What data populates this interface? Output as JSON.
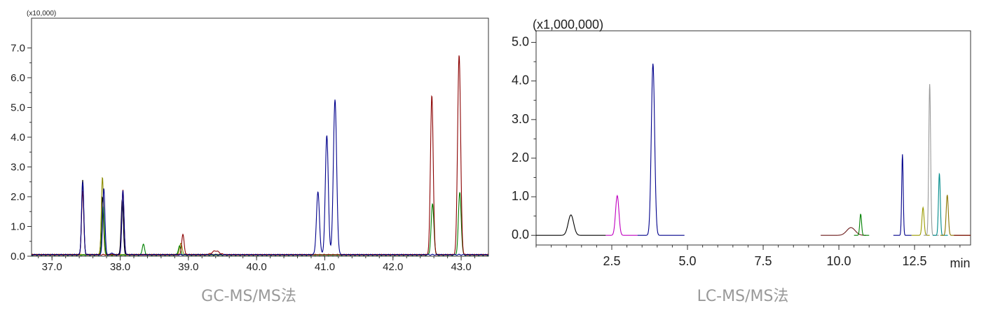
{
  "chart_data": [
    {
      "type": "line",
      "multiplier_label": "(x10,000)",
      "caption": "GC-MS/MS法",
      "xlim": [
        36.7,
        43.4
      ],
      "ylim": [
        0,
        8.0
      ],
      "xticks": [
        37.0,
        38.0,
        39.0,
        40.0,
        41.0,
        42.0,
        43.0
      ],
      "xtick_labels": [
        "37.0",
        "38.0",
        "39.0",
        "40.0",
        "41.0",
        "42.0",
        "43.0"
      ],
      "yticks": [
        0,
        1,
        2,
        3,
        4,
        5,
        6,
        7
      ],
      "ytick_labels": [
        "0.0",
        "1.0",
        "2.0",
        "3.0",
        "4.0",
        "5.0",
        "6.0",
        "7.0"
      ],
      "series": [
        {
          "color": "#000000",
          "baseline": 0.05,
          "range": [
            36.7,
            39.5
          ],
          "peaks": [
            [
              37.45,
              2.55,
              0.016
            ],
            [
              37.74,
              2.0,
              0.016
            ],
            [
              38.03,
              1.9,
              0.016
            ]
          ]
        },
        {
          "color": "#8b8b00",
          "baseline": 0.05,
          "range": [
            36.7,
            39.5
          ],
          "peaks": [
            [
              37.74,
              2.65,
              0.016
            ],
            [
              38.89,
              0.45,
              0.018
            ]
          ]
        },
        {
          "color": "#008000",
          "baseline": 0.04,
          "range": [
            36.7,
            43.4
          ],
          "peaks": [
            [
              37.75,
              1.7,
              0.016
            ],
            [
              38.34,
              0.42,
              0.016
            ],
            [
              38.87,
              0.35,
              0.018
            ],
            [
              42.58,
              1.75,
              0.02
            ],
            [
              42.98,
              2.15,
              0.02
            ]
          ]
        },
        {
          "color": "#8b0000",
          "baseline": 0.05,
          "range": [
            36.7,
            43.4
          ],
          "peaks": [
            [
              37.45,
              2.2,
              0.016
            ],
            [
              38.04,
              2.25,
              0.016
            ],
            [
              38.92,
              0.72,
              0.018
            ],
            [
              39.4,
              0.18,
              0.05
            ],
            [
              42.57,
              5.42,
              0.02
            ],
            [
              42.97,
              6.78,
              0.022
            ]
          ]
        },
        {
          "color": "#00008b",
          "baseline": 0.05,
          "range": [
            36.7,
            43.4
          ],
          "peaks": [
            [
              37.45,
              2.5,
              0.016
            ],
            [
              37.76,
              2.3,
              0.016
            ],
            [
              37.88,
              0.12,
              0.014
            ],
            [
              38.04,
              2.2,
              0.016
            ],
            [
              40.9,
              2.15,
              0.022
            ],
            [
              41.03,
              4.05,
              0.022
            ],
            [
              41.15,
              5.25,
              0.024
            ]
          ]
        }
      ]
    },
    {
      "type": "line",
      "multiplier_label": "(x1,000,000)",
      "caption": "LC-MS/MS法",
      "xlabel": "min",
      "xlim": [
        0,
        14.35
      ],
      "ylim": [
        -0.25,
        5.3
      ],
      "xticks": [
        2.5,
        5.0,
        7.5,
        10.0,
        12.5
      ],
      "xtick_labels": [
        "2.5",
        "5.0",
        "7.5",
        "10.0",
        "12.5"
      ],
      "yticks": [
        0,
        1,
        2,
        3,
        4,
        5
      ],
      "ytick_labels": [
        "0.0",
        "1.0",
        "2.0",
        "3.0",
        "4.0",
        "5.0"
      ],
      "series": [
        {
          "color": "#000000",
          "baseline": 0.0,
          "range": [
            0,
            2.3
          ],
          "peaks": [
            [
              1.15,
              0.53,
              0.09
            ]
          ]
        },
        {
          "color": "#c000c0",
          "baseline": 0.0,
          "range": [
            2.3,
            3.35
          ],
          "peaks": [
            [
              2.68,
              1.03,
              0.055
            ]
          ]
        },
        {
          "color": "#00008b",
          "baseline": 0.0,
          "range": [
            3.35,
            4.9
          ],
          "peaks": [
            [
              3.86,
              4.45,
              0.055
            ]
          ]
        },
        {
          "color": "#6b1a1a",
          "baseline": 0.0,
          "range": [
            9.4,
            10.9
          ],
          "peaks": [
            [
              10.4,
              0.2,
              0.14
            ]
          ]
        },
        {
          "color": "#008000",
          "baseline": 0.0,
          "range": [
            10.5,
            11.0
          ],
          "peaks": [
            [
              10.72,
              0.55,
              0.03
            ]
          ]
        },
        {
          "color": "#00008b",
          "baseline": 0.0,
          "range": [
            11.8,
            12.4
          ],
          "peaks": [
            [
              12.1,
              2.1,
              0.025
            ]
          ]
        },
        {
          "color": "#9a9a00",
          "baseline": 0.0,
          "range": [
            12.4,
            13.0
          ],
          "peaks": [
            [
              12.78,
              0.72,
              0.035
            ]
          ]
        },
        {
          "color": "#999999",
          "baseline": 0.0,
          "range": [
            12.8,
            13.3
          ],
          "peaks": [
            [
              13.0,
              3.92,
              0.03
            ]
          ]
        },
        {
          "color": "#008b8b",
          "baseline": 0.0,
          "range": [
            13.1,
            13.6
          ],
          "peaks": [
            [
              13.32,
              1.6,
              0.03
            ]
          ]
        },
        {
          "color": "#8b7500",
          "baseline": 0.0,
          "range": [
            13.35,
            14.35
          ],
          "peaks": [
            [
              13.58,
              1.05,
              0.035
            ]
          ]
        },
        {
          "color": "#7a0000",
          "baseline": 0.0,
          "range": [
            13.8,
            14.35
          ],
          "peaks": []
        }
      ]
    }
  ]
}
